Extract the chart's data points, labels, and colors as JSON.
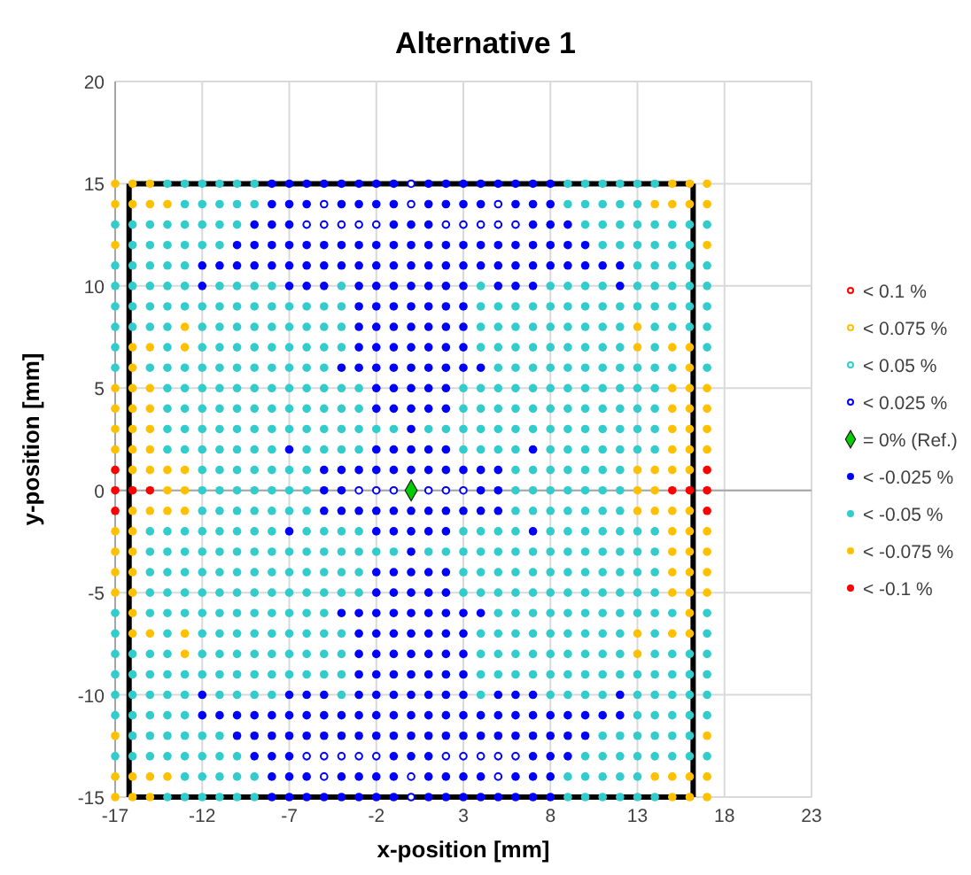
{
  "chart_data": {
    "type": "scatter",
    "title": "Alternative 1",
    "xlabel": "x-position [mm]",
    "ylabel": "y-position [mm]",
    "xlim": [
      -17,
      23
    ],
    "xticks": [
      -17,
      -12,
      -7,
      -2,
      3,
      8,
      13,
      18,
      23
    ],
    "ylim": [
      -15,
      20
    ],
    "yticks": [
      -15,
      -10,
      -5,
      0,
      5,
      10,
      15,
      20
    ],
    "grid": true,
    "legend": "right",
    "marker": "circle",
    "series": [
      {
        "type": "line",
        "marker": "none",
        "color": "#000000",
        "x": [
          -16.2,
          16.2
        ],
        "values": [
          15,
          15
        ]
      },
      {
        "type": "line",
        "marker": "none",
        "color": "#000000",
        "x": [
          -16.2,
          16.2
        ],
        "values": [
          -15,
          -15
        ]
      },
      {
        "type": "line",
        "marker": "none",
        "color": "#000000",
        "x": [
          -16.2,
          -16.2
        ],
        "values": [
          15,
          -15
        ]
      },
      {
        "type": "line",
        "marker": "none",
        "color": "#000000",
        "x": [
          16.2,
          16.2
        ],
        "values": [
          15,
          -15
        ]
      },
      {
        "name": "< 0.1 %",
        "color": "#ff0000",
        "marker": "circle-open"
      },
      {
        "name": "< 0.075 %",
        "color": "#ffc000",
        "marker": "circle-open"
      },
      {
        "name": "< 0.05 %",
        "color": "#33cccc",
        "marker": "circle-open"
      },
      {
        "name": "< 0.025 %",
        "color": "#0000ff",
        "marker": "circle-open",
        "x": [
          0,
          -5,
          0,
          5,
          -6,
          -5,
          -4,
          -3,
          -2,
          2,
          3,
          4,
          5,
          6,
          -3,
          -2,
          -1,
          1,
          2,
          3,
          -6,
          -5,
          -4,
          -3,
          -2,
          2,
          3,
          4,
          5,
          6,
          -5,
          0,
          5,
          0
        ],
        "values": [
          15,
          14,
          14,
          14,
          13,
          13,
          13,
          13,
          13,
          13,
          13,
          13,
          13,
          13,
          0,
          0,
          0,
          0,
          0,
          0,
          -13,
          -13,
          -13,
          -13,
          -13,
          -13,
          -13,
          -13,
          -13,
          -13,
          -14,
          -14,
          -14,
          -15
        ]
      },
      {
        "name": "= 0% (Ref.)",
        "color": "#00cc00",
        "marker": "diamond",
        "x": [
          0
        ],
        "values": [
          0
        ]
      },
      {
        "name": "< -0.025 %",
        "color": "#0000ff",
        "x": [
          -8,
          -7,
          -6,
          -5,
          -4,
          -3,
          -2,
          -1,
          1,
          2,
          3,
          4,
          5,
          6,
          7,
          8,
          -8,
          -7,
          -6,
          -4,
          -3,
          -2,
          -1,
          1,
          2,
          3,
          4,
          6,
          7,
          8,
          -9,
          -8,
          -7,
          -1,
          0,
          1,
          7,
          8,
          9,
          -10,
          -9,
          -8,
          -7,
          -6,
          -5,
          -4,
          -3,
          -2,
          -1,
          0,
          1,
          2,
          3,
          4,
          5,
          6,
          7,
          8,
          9,
          10,
          -12,
          -11,
          -10,
          -9,
          -8,
          -7,
          -6,
          -5,
          -4,
          -3,
          -2,
          -1,
          0,
          1,
          2,
          3,
          4,
          5,
          6,
          7,
          8,
          9,
          10,
          11,
          12,
          -12,
          -7,
          -6,
          -5,
          -3,
          -2,
          -1,
          0,
          1,
          2,
          3,
          5,
          6,
          7,
          12,
          -3,
          -2,
          -1,
          0,
          1,
          2,
          3,
          -3,
          -2,
          -1,
          0,
          1,
          2,
          3,
          -3,
          -2,
          -1,
          0,
          1,
          2,
          3,
          -4,
          -3,
          -2,
          -1,
          0,
          1,
          2,
          3,
          4,
          -2,
          -1,
          0,
          1,
          2,
          -2,
          -1,
          0,
          1,
          2,
          0,
          -7,
          -2,
          -1,
          0,
          1,
          2,
          7,
          -5,
          -4,
          -3,
          -2,
          -1,
          0,
          1,
          2,
          3,
          4,
          5,
          -5,
          -4,
          4,
          5,
          -5,
          -4,
          -3,
          -2,
          -1,
          0,
          1,
          2,
          3,
          4,
          5,
          -7,
          -2,
          -1,
          0,
          1,
          2,
          7,
          0,
          -2,
          -1,
          0,
          1,
          2,
          -2,
          -1,
          0,
          1,
          2,
          -4,
          -3,
          -2,
          -1,
          0,
          1,
          2,
          3,
          4,
          -3,
          -2,
          -1,
          0,
          1,
          2,
          3,
          -3,
          -2,
          -1,
          0,
          1,
          2,
          3,
          -3,
          -2,
          -1,
          0,
          1,
          2,
          3,
          -12,
          -7,
          -6,
          -5,
          -3,
          -2,
          -1,
          0,
          1,
          2,
          3,
          5,
          6,
          7,
          12,
          -12,
          -11,
          -10,
          -9,
          -8,
          -7,
          -6,
          -5,
          -4,
          -3,
          -2,
          -1,
          0,
          1,
          2,
          3,
          4,
          5,
          6,
          7,
          8,
          9,
          10,
          11,
          12,
          -10,
          -9,
          -8,
          -7,
          -6,
          -5,
          -4,
          -3,
          -2,
          -1,
          0,
          1,
          2,
          3,
          4,
          5,
          6,
          7,
          8,
          9,
          10,
          -9,
          -8,
          -7,
          -1,
          0,
          1,
          7,
          8,
          9,
          -8,
          -7,
          -6,
          -4,
          -3,
          -2,
          -1,
          1,
          2,
          3,
          4,
          6,
          7,
          8,
          -8,
          -7,
          -6,
          -5,
          -4,
          -3,
          -2,
          -1,
          1,
          2,
          3,
          4,
          5,
          6,
          7,
          8
        ],
        "values": [
          15,
          15,
          15,
          15,
          15,
          15,
          15,
          15,
          15,
          15,
          15,
          15,
          15,
          15,
          15,
          15,
          14,
          14,
          14,
          14,
          14,
          14,
          14,
          14,
          14,
          14,
          14,
          14,
          14,
          14,
          13,
          13,
          13,
          13,
          13,
          13,
          13,
          13,
          13,
          12,
          12,
          12,
          12,
          12,
          12,
          12,
          12,
          12,
          12,
          12,
          12,
          12,
          12,
          12,
          12,
          12,
          12,
          12,
          12,
          12,
          11,
          11,
          11,
          11,
          11,
          11,
          11,
          11,
          11,
          11,
          11,
          11,
          11,
          11,
          11,
          11,
          11,
          11,
          11,
          11,
          11,
          11,
          11,
          11,
          11,
          10,
          10,
          10,
          10,
          10,
          10,
          10,
          10,
          10,
          10,
          10,
          10,
          10,
          10,
          10,
          9,
          9,
          9,
          9,
          9,
          9,
          9,
          8,
          8,
          8,
          8,
          8,
          8,
          8,
          7,
          7,
          7,
          7,
          7,
          7,
          7,
          6,
          6,
          6,
          6,
          6,
          6,
          6,
          6,
          6,
          5,
          5,
          5,
          5,
          5,
          4,
          4,
          4,
          4,
          4,
          3,
          2,
          2,
          2,
          2,
          2,
          2,
          2,
          1,
          1,
          1,
          1,
          1,
          1,
          1,
          1,
          1,
          1,
          1,
          0,
          0,
          0,
          0,
          -1,
          -1,
          -1,
          -1,
          -1,
          -1,
          -1,
          -1,
          -1,
          -1,
          -1,
          -2,
          -2,
          -2,
          -2,
          -2,
          -2,
          -2,
          -3,
          -4,
          -4,
          -4,
          -4,
          -4,
          -5,
          -5,
          -5,
          -5,
          -5,
          -6,
          -6,
          -6,
          -6,
          -6,
          -6,
          -6,
          -6,
          -6,
          -7,
          -7,
          -7,
          -7,
          -7,
          -7,
          -7,
          -8,
          -8,
          -8,
          -8,
          -8,
          -8,
          -8,
          -9,
          -9,
          -9,
          -9,
          -9,
          -9,
          -9,
          -10,
          -10,
          -10,
          -10,
          -10,
          -10,
          -10,
          -10,
          -10,
          -10,
          -10,
          -10,
          -10,
          -10,
          -10,
          -11,
          -11,
          -11,
          -11,
          -11,
          -11,
          -11,
          -11,
          -11,
          -11,
          -11,
          -11,
          -11,
          -11,
          -11,
          -11,
          -11,
          -11,
          -11,
          -11,
          -11,
          -11,
          -11,
          -11,
          -11,
          -12,
          -12,
          -12,
          -12,
          -12,
          -12,
          -12,
          -12,
          -12,
          -12,
          -12,
          -12,
          -12,
          -12,
          -12,
          -12,
          -12,
          -12,
          -12,
          -12,
          -12,
          -13,
          -13,
          -13,
          -13,
          -13,
          -13,
          -13,
          -13,
          -13,
          -14,
          -14,
          -14,
          -14,
          -14,
          -14,
          -14,
          -14,
          -14,
          -14,
          -14,
          -14,
          -14,
          -14,
          -15,
          -15,
          -15,
          -15,
          -15,
          -15,
          -15,
          -15,
          -15,
          -15,
          -15,
          -15,
          -15,
          -15,
          -15,
          -15
        ]
      },
      {
        "name": "< -0.05 %",
        "color": "#33cccc",
        "x": [
          -14,
          -13,
          -12,
          -11,
          -10,
          -9,
          9,
          10,
          11,
          12,
          13,
          14,
          -13,
          -12,
          -11,
          -10,
          -9,
          9,
          10,
          11,
          12,
          13,
          -17,
          -16,
          -15,
          -14,
          -13,
          -12,
          -11,
          -10,
          10,
          11,
          12,
          13,
          14,
          15,
          16,
          17,
          -16,
          -15,
          -14,
          -13,
          -12,
          -11,
          11,
          12,
          13,
          14,
          15,
          16,
          -17,
          -16,
          -15,
          -14,
          -13,
          13,
          14,
          15,
          16,
          17,
          -17,
          -16,
          -15,
          -14,
          -13,
          -11,
          -10,
          -9,
          -8,
          -4,
          4,
          8,
          9,
          10,
          11,
          13,
          14,
          15,
          16,
          17,
          -17,
          -16,
          -15,
          -14,
          -13,
          -12,
          -11,
          -10,
          -9,
          -8,
          -7,
          -6,
          -5,
          -4,
          4,
          5,
          6,
          7,
          8,
          9,
          10,
          11,
          12,
          13,
          14,
          15,
          16,
          17,
          -17,
          -16,
          -15,
          -14,
          -12,
          -11,
          -10,
          -9,
          -8,
          -7,
          -6,
          -5,
          -4,
          4,
          5,
          6,
          7,
          8,
          9,
          10,
          11,
          12,
          14,
          15,
          16,
          17,
          -17,
          -14,
          -12,
          -11,
          -10,
          -9,
          -8,
          -7,
          -6,
          -5,
          -4,
          4,
          5,
          6,
          7,
          8,
          9,
          10,
          11,
          12,
          14,
          17,
          -17,
          -15,
          -14,
          -13,
          -12,
          -11,
          -10,
          -9,
          -8,
          -7,
          -6,
          -5,
          5,
          6,
          7,
          8,
          9,
          10,
          11,
          12,
          13,
          14,
          15,
          17,
          -14,
          -13,
          -12,
          -11,
          -10,
          -9,
          -8,
          -7,
          -6,
          -5,
          -4,
          -3,
          3,
          4,
          5,
          6,
          7,
          8,
          9,
          10,
          11,
          12,
          13,
          14,
          -14,
          -13,
          -12,
          -11,
          -10,
          -9,
          -8,
          -7,
          -6,
          -5,
          -4,
          -3,
          3,
          4,
          5,
          6,
          7,
          8,
          9,
          10,
          11,
          12,
          13,
          14,
          -14,
          -13,
          -12,
          -11,
          -10,
          -9,
          -8,
          -7,
          -6,
          -5,
          -4,
          -3,
          -2,
          -1,
          1,
          2,
          3,
          4,
          5,
          6,
          7,
          8,
          9,
          10,
          11,
          12,
          13,
          14,
          -14,
          -13,
          -12,
          -11,
          -10,
          -9,
          -8,
          -6,
          -5,
          -4,
          -3,
          3,
          4,
          5,
          6,
          8,
          9,
          10,
          11,
          12,
          13,
          14,
          -12,
          -11,
          -10,
          -9,
          -8,
          -7,
          -6,
          6,
          7,
          8,
          9,
          10,
          11,
          12,
          -12,
          -11,
          -10,
          -9,
          -8,
          -7,
          -6,
          6,
          7,
          8,
          9,
          10,
          11,
          12,
          -12,
          -11,
          -10,
          -9,
          -8,
          -7,
          -6,
          6,
          7,
          8,
          9,
          10,
          11,
          12,
          -15,
          -14,
          -13,
          -12,
          -11,
          -10,
          -9,
          -8,
          -6,
          -5,
          -4,
          -3,
          3,
          4,
          5,
          6,
          8,
          9,
          10,
          11,
          12,
          13,
          14,
          -15,
          -14,
          -13,
          -12,
          -11,
          -10,
          -9,
          -8,
          -7,
          -6,
          -5,
          -4,
          -3,
          -2,
          -1,
          1,
          2,
          3,
          4,
          5,
          6,
          7,
          8,
          9,
          10,
          11,
          12,
          13,
          14,
          -15,
          -14,
          -13,
          -12,
          -11,
          -10,
          -9,
          -8,
          -7,
          -6,
          -5,
          -4,
          -3,
          3,
          4,
          5,
          6,
          7,
          8,
          9,
          10,
          11,
          12,
          13,
          14,
          -15,
          -14,
          -13,
          -12,
          -11,
          -10,
          -9,
          -8,
          -7,
          -6,
          -5,
          -4,
          -3,
          3,
          4,
          5,
          6,
          7,
          8,
          9,
          10,
          11,
          12,
          13,
          14,
          -17,
          -15,
          -14,
          -13,
          -12,
          -11,
          -10,
          -9,
          -8,
          -7,
          -6,
          -5,
          5,
          6,
          7,
          8,
          9,
          10,
          11,
          12,
          13,
          14,
          15,
          17,
          -17,
          -14,
          -12,
          -11,
          -10,
          -9,
          -8,
          -7,
          -6,
          -5,
          -4,
          4,
          5,
          6,
          7,
          8,
          9,
          10,
          11,
          12,
          14,
          17,
          -17,
          -16,
          -15,
          -14,
          -12,
          -11,
          -10,
          -9,
          -8,
          -7,
          -6,
          -5,
          -4,
          4,
          5,
          6,
          7,
          8,
          9,
          10,
          11,
          12,
          14,
          15,
          16,
          17,
          -17,
          -16,
          -15,
          -14,
          -13,
          -12,
          -11,
          -10,
          -9,
          -8,
          -7,
          -6,
          -5,
          -4,
          4,
          5,
          6,
          7,
          8,
          9,
          10,
          11,
          12,
          13,
          14,
          15,
          16,
          17,
          -17,
          -16,
          -15,
          -14,
          -13,
          -11,
          -10,
          -9,
          -8,
          -4,
          4,
          8,
          9,
          10,
          11,
          13,
          14,
          15,
          16,
          17,
          -17,
          -16,
          -15,
          -14,
          -13,
          13,
          14,
          15,
          16,
          17,
          -16,
          -15,
          -14,
          -13,
          -12,
          -11,
          11,
          12,
          13,
          14,
          15,
          16,
          -17,
          -16,
          -15,
          -14,
          -13,
          -12,
          -11,
          -10,
          10,
          11,
          12,
          13,
          14,
          15,
          16,
          17,
          -13,
          -12,
          -11,
          -10,
          -9,
          9,
          10,
          11,
          12,
          13,
          -14,
          -13,
          -12,
          -11,
          -10,
          -9,
          9,
          10,
          11,
          12,
          13,
          14
        ],
        "values": [
          15,
          15,
          15,
          15,
          15,
          15,
          15,
          15,
          15,
          15,
          15,
          15,
          14,
          14,
          14,
          14,
          14,
          14,
          14,
          14,
          14,
          14,
          13,
          13,
          13,
          13,
          13,
          13,
          13,
          13,
          13,
          13,
          13,
          13,
          13,
          13,
          13,
          13,
          12,
          12,
          12,
          12,
          12,
          12,
          12,
          12,
          12,
          12,
          12,
          12,
          11,
          11,
          11,
          11,
          11,
          11,
          11,
          11,
          11,
          11,
          10,
          10,
          10,
          10,
          10,
          10,
          10,
          10,
          10,
          10,
          10,
          10,
          10,
          10,
          10,
          10,
          10,
          10,
          10,
          10,
          9,
          9,
          9,
          9,
          9,
          9,
          9,
          9,
          9,
          9,
          9,
          9,
          9,
          9,
          9,
          9,
          9,
          9,
          9,
          9,
          9,
          9,
          9,
          9,
          9,
          9,
          9,
          9,
          8,
          8,
          8,
          8,
          8,
          8,
          8,
          8,
          8,
          8,
          8,
          8,
          8,
          8,
          8,
          8,
          8,
          8,
          8,
          8,
          8,
          8,
          8,
          8,
          8,
          8,
          7,
          7,
          7,
          7,
          7,
          7,
          7,
          7,
          7,
          7,
          7,
          7,
          7,
          7,
          7,
          7,
          7,
          7,
          7,
          7,
          7,
          7,
          6,
          6,
          6,
          6,
          6,
          6,
          6,
          6,
          6,
          6,
          6,
          6,
          6,
          6,
          6,
          6,
          6,
          6,
          6,
          6,
          6,
          6,
          6,
          6,
          5,
          5,
          5,
          5,
          5,
          5,
          5,
          5,
          5,
          5,
          5,
          5,
          5,
          5,
          5,
          5,
          5,
          5,
          5,
          5,
          5,
          5,
          5,
          5,
          4,
          4,
          4,
          4,
          4,
          4,
          4,
          4,
          4,
          4,
          4,
          4,
          4,
          4,
          4,
          4,
          4,
          4,
          4,
          4,
          4,
          4,
          4,
          4,
          3,
          3,
          3,
          3,
          3,
          3,
          3,
          3,
          3,
          3,
          3,
          3,
          3,
          3,
          3,
          3,
          3,
          3,
          3,
          3,
          3,
          3,
          3,
          3,
          3,
          3,
          3,
          3,
          2,
          2,
          2,
          2,
          2,
          2,
          2,
          2,
          2,
          2,
          2,
          2,
          2,
          2,
          2,
          2,
          2,
          2,
          2,
          2,
          2,
          2,
          1,
          1,
          1,
          1,
          1,
          1,
          1,
          1,
          1,
          1,
          1,
          1,
          1,
          1,
          0,
          0,
          0,
          0,
          0,
          0,
          0,
          0,
          0,
          0,
          0,
          0,
          0,
          0,
          -1,
          -1,
          -1,
          -1,
          -1,
          -1,
          -1,
          -1,
          -1,
          -1,
          -1,
          -1,
          -1,
          -1,
          -2,
          -2,
          -2,
          -2,
          -2,
          -2,
          -2,
          -2,
          -2,
          -2,
          -2,
          -2,
          -2,
          -2,
          -2,
          -2,
          -2,
          -2,
          -2,
          -2,
          -2,
          -2,
          -2,
          -3,
          -3,
          -3,
          -3,
          -3,
          -3,
          -3,
          -3,
          -3,
          -3,
          -3,
          -3,
          -3,
          -3,
          -3,
          -3,
          -3,
          -3,
          -3,
          -3,
          -3,
          -3,
          -3,
          -3,
          -3,
          -3,
          -3,
          -3,
          -3,
          -4,
          -4,
          -4,
          -4,
          -4,
          -4,
          -4,
          -4,
          -4,
          -4,
          -4,
          -4,
          -4,
          -4,
          -4,
          -4,
          -4,
          -4,
          -4,
          -4,
          -4,
          -4,
          -4,
          -4,
          -4,
          -5,
          -5,
          -5,
          -5,
          -5,
          -5,
          -5,
          -5,
          -5,
          -5,
          -5,
          -5,
          -5,
          -5,
          -5,
          -5,
          -5,
          -5,
          -5,
          -5,
          -5,
          -5,
          -5,
          -5,
          -5,
          -6,
          -6,
          -6,
          -6,
          -6,
          -6,
          -6,
          -6,
          -6,
          -6,
          -6,
          -6,
          -6,
          -6,
          -6,
          -6,
          -6,
          -6,
          -6,
          -6,
          -6,
          -6,
          -6,
          -6,
          -7,
          -7,
          -7,
          -7,
          -7,
          -7,
          -7,
          -7,
          -7,
          -7,
          -7,
          -7,
          -7,
          -7,
          -7,
          -7,
          -7,
          -7,
          -7,
          -7,
          -7,
          -7,
          -8,
          -8,
          -8,
          -8,
          -8,
          -8,
          -8,
          -8,
          -8,
          -8,
          -8,
          -8,
          -8,
          -8,
          -8,
          -8,
          -8,
          -8,
          -8,
          -8,
          -8,
          -8,
          -8,
          -8,
          -8,
          -8,
          -9,
          -9,
          -9,
          -9,
          -9,
          -9,
          -9,
          -9,
          -9,
          -9,
          -9,
          -9,
          -9,
          -9,
          -9,
          -9,
          -9,
          -9,
          -9,
          -9,
          -9,
          -9,
          -9,
          -9,
          -9,
          -9,
          -9,
          -9,
          -10,
          -10,
          -10,
          -10,
          -10,
          -10,
          -10,
          -10,
          -10,
          -10,
          -10,
          -10,
          -10,
          -10,
          -10,
          -10,
          -10,
          -10,
          -10,
          -10,
          -11,
          -11,
          -11,
          -11,
          -11,
          -11,
          -11,
          -11,
          -11,
          -11,
          -12,
          -12,
          -12,
          -12,
          -12,
          -12,
          -12,
          -12,
          -12,
          -12,
          -12,
          -12,
          -13,
          -13,
          -13,
          -13,
          -13,
          -13,
          -13,
          -13,
          -13,
          -13,
          -13,
          -13,
          -13,
          -13,
          -13,
          -13,
          -14,
          -14,
          -14,
          -14,
          -14,
          -14,
          -14,
          -14,
          -14,
          -14,
          -15,
          -15,
          -15,
          -15,
          -15,
          -15,
          -15,
          -15,
          -15,
          -15,
          -15,
          -15
        ]
      },
      {
        "name": "< -0.075 %",
        "color": "#ffc000",
        "x": [
          -17,
          -16,
          -15,
          15,
          16,
          17,
          -17,
          -16,
          -15,
          -14,
          14,
          15,
          16,
          17,
          -17,
          17,
          -13,
          13,
          -16,
          -15,
          -13,
          13,
          15,
          16,
          -16,
          16,
          -17,
          -16,
          -15,
          15,
          16,
          17,
          -17,
          -16,
          -15,
          15,
          16,
          17,
          -17,
          -16,
          -15,
          15,
          16,
          17,
          -17,
          -16,
          -15,
          15,
          16,
          17,
          -16,
          -15,
          -14,
          -13,
          13,
          14,
          15,
          16,
          -14,
          -13,
          13,
          14,
          -16,
          -15,
          -14,
          -13,
          13,
          14,
          15,
          16,
          -17,
          -16,
          15,
          16,
          17,
          -17,
          -16,
          15,
          16,
          17,
          -17,
          -16,
          15,
          16,
          17,
          -17,
          -16,
          15,
          16,
          17,
          -16,
          16,
          -16,
          -15,
          -13,
          13,
          15,
          16,
          -13,
          13,
          -17,
          17,
          -17,
          -16,
          -15,
          -14,
          14,
          15,
          16,
          17,
          -17,
          -16,
          -15,
          15,
          16,
          17
        ],
        "values": [
          15,
          15,
          15,
          15,
          15,
          15,
          14,
          14,
          14,
          14,
          14,
          14,
          14,
          14,
          12,
          12,
          8,
          8,
          7,
          7,
          7,
          7,
          7,
          7,
          6,
          6,
          5,
          5,
          5,
          5,
          5,
          5,
          4,
          4,
          4,
          4,
          4,
          4,
          3,
          3,
          3,
          3,
          3,
          3,
          2,
          2,
          2,
          2,
          2,
          2,
          1,
          1,
          1,
          1,
          1,
          1,
          1,
          1,
          0,
          0,
          0,
          0,
          -1,
          -1,
          -1,
          -1,
          -1,
          -1,
          -1,
          -1,
          -2,
          -2,
          -2,
          -2,
          -2,
          -3,
          -3,
          -3,
          -3,
          -3,
          -4,
          -4,
          -4,
          -4,
          -4,
          -5,
          -5,
          -5,
          -5,
          -5,
          -6,
          -6,
          -7,
          -7,
          -7,
          -7,
          -7,
          -7,
          -8,
          -8,
          -12,
          -12,
          -14,
          -14,
          -14,
          -14,
          -14,
          -14,
          -14,
          -14,
          -15,
          -15,
          -15,
          -15,
          -15,
          -15
        ]
      },
      {
        "name": "< -0.1 %",
        "color": "#ff0000",
        "x": [
          -17,
          17,
          -17,
          -16,
          -15,
          15,
          16,
          17,
          -17,
          17
        ],
        "values": [
          1,
          1,
          0,
          0,
          0,
          0,
          0,
          0,
          -1,
          -1
        ]
      }
    ]
  }
}
